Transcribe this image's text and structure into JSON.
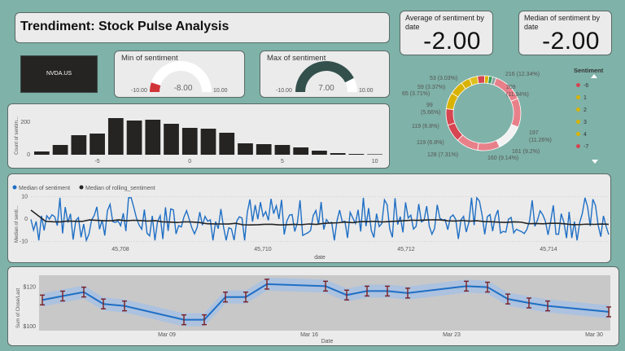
{
  "header": {
    "title": "Trendiment: Stock Pulse Analysis"
  },
  "ticker": {
    "label": "NVDA.US"
  },
  "kpis": {
    "average": {
      "label": "Average of sentiment by date",
      "value": "-2.00"
    },
    "median": {
      "label": "Median of sentiment by date",
      "value": "-2.00"
    }
  },
  "gauges": {
    "min": {
      "label": "Min of sentiment",
      "value": "-8.00",
      "min": "-10.00",
      "max": "10.00",
      "value_num": -8,
      "min_num": -10,
      "max_num": 10
    },
    "max": {
      "label": "Max of sentiment",
      "value": "7.00",
      "min": "-10.00",
      "max": "10.00",
      "value_num": 7,
      "min_num": -10,
      "max_num": 10
    }
  },
  "colors": {
    "accent_blue": "#1f6fc5",
    "dark": "#252423",
    "red": "#d64550",
    "yellow": "#d9b300",
    "green": "#3a9b5c",
    "pink": "#e8808a",
    "gauge_red": "#d13438",
    "gauge_dark": "#33504c"
  },
  "donut": {
    "legend_title": "Sentiment",
    "legend_items": [
      {
        "label": "-6",
        "color": "#d64550"
      },
      {
        "label": "1",
        "color": "#d9b300"
      },
      {
        "label": "2",
        "color": "#d9b300"
      },
      {
        "label": "3",
        "color": "#d9b300"
      },
      {
        "label": "4",
        "color": "#d9b300"
      },
      {
        "label": "-7",
        "color": "#d64550"
      }
    ],
    "labels": [
      "216 (12.34%)",
      "209",
      "(11.94%)",
      "197",
      "(11.26%)",
      "161 (9.2%)",
      "160 (9.14%)",
      "128 (7.31%)",
      "119 (6.8%)",
      "119 (6.8%)",
      "99",
      "(5.66%)",
      "65 (3.71%)",
      "59 (3.37%)",
      "53 (3.03%)"
    ],
    "slices": [
      {
        "value": 216,
        "color": "#e8808a"
      },
      {
        "value": 209,
        "color": "#e8808a"
      },
      {
        "value": 197,
        "color": "#f2f2f2"
      },
      {
        "value": 161,
        "color": "#e8808a"
      },
      {
        "value": 160,
        "color": "#e8808a"
      },
      {
        "value": 128,
        "color": "#d64550"
      },
      {
        "value": 119,
        "color": "#d64550"
      },
      {
        "value": 119,
        "color": "#d9b300"
      },
      {
        "value": 99,
        "color": "#d9b300"
      },
      {
        "value": 65,
        "color": "#d9b300"
      },
      {
        "value": 59,
        "color": "#e0c020"
      },
      {
        "value": 53,
        "color": "#d64550"
      },
      {
        "value": 30,
        "color": "#d9b300"
      },
      {
        "value": 28,
        "color": "#3a9b5c"
      },
      {
        "value": 25,
        "color": "#8aa0a0"
      }
    ]
  },
  "chart_data": [
    {
      "type": "bar",
      "ylabel": "Count of sentim...",
      "x_ticks": [
        "-5",
        "0",
        "5",
        "10"
      ],
      "y_ticks": [
        "0",
        "200"
      ],
      "ylim": [
        0,
        260
      ],
      "categories": [
        -8,
        -7,
        -6,
        -5,
        -4,
        -3,
        -2,
        -1,
        0,
        1,
        2,
        3,
        4,
        5,
        6,
        7,
        8,
        9,
        10
      ],
      "values": [
        20,
        60,
        120,
        130,
        225,
        210,
        215,
        190,
        165,
        160,
        135,
        70,
        65,
        60,
        45,
        25,
        10,
        5,
        3
      ]
    },
    {
      "type": "line",
      "ylabel": "Median of senti...",
      "xlabel": "date",
      "legend": [
        "Median of sentiment",
        "Median of rolling_sentiment"
      ],
      "x_ticks": [
        "45,708",
        "45,710",
        "45,712",
        "45,714"
      ],
      "y_ticks": [
        "10",
        "0",
        "-10"
      ],
      "ylim": [
        -12,
        12
      ]
    },
    {
      "type": "line",
      "ylabel": "Sum of Close/Last",
      "xlabel": "Date",
      "x_ticks": [
        "Mar 09",
        "Mar 16",
        "Mar 23",
        "Mar 30"
      ],
      "y_ticks": [
        "$120",
        "$100"
      ],
      "ylim": [
        98,
        126
      ],
      "values": [
        113.5,
        115.5,
        117.5,
        111.5,
        110.5,
        103.5,
        103.5,
        115,
        115,
        121.5,
        120.5,
        116,
        118,
        118,
        117,
        120.5,
        120,
        114,
        112,
        110.5,
        107.5
      ]
    }
  ]
}
